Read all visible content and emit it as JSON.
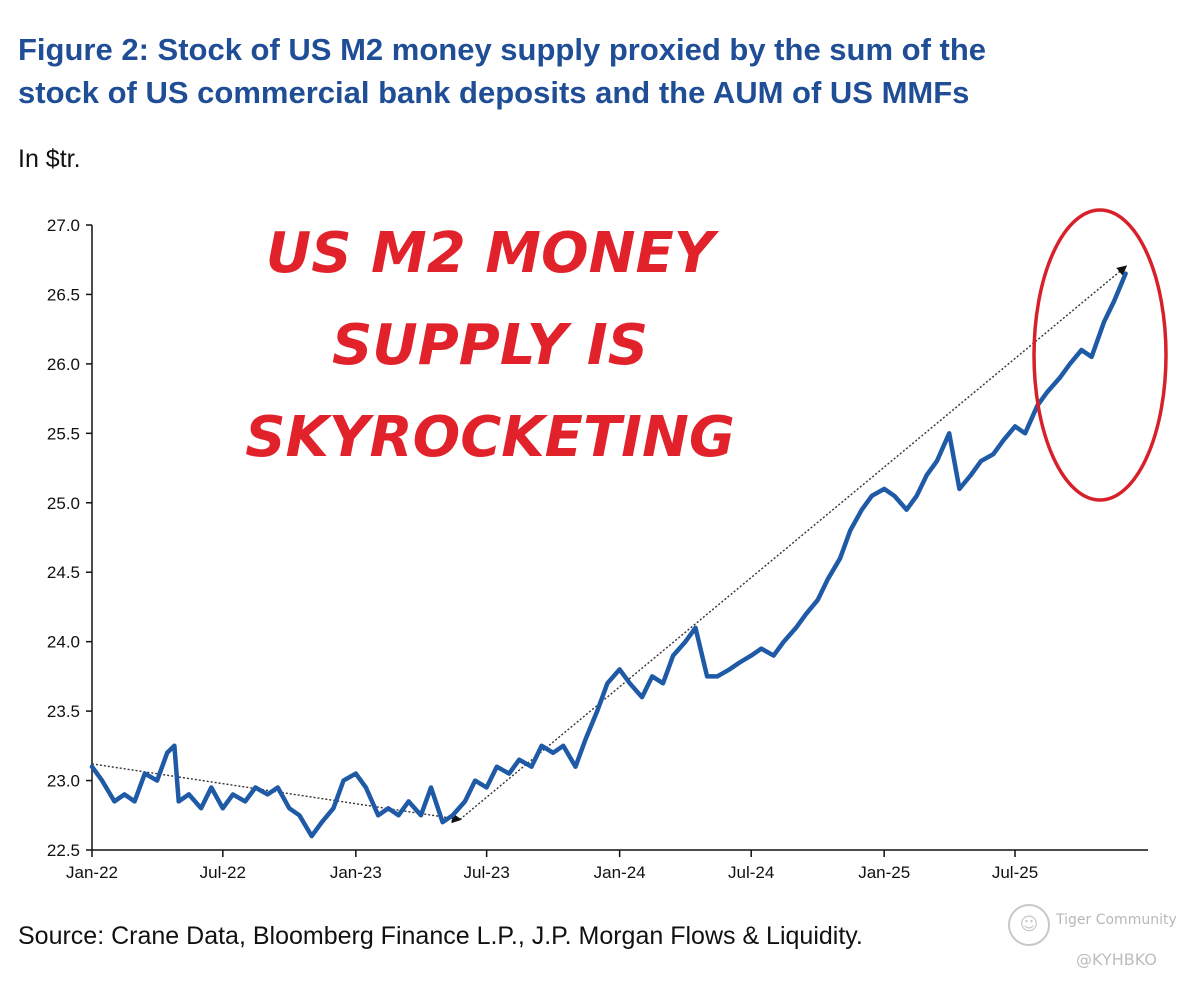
{
  "chart_data": {
    "type": "line",
    "title": "Figure 2: Stock of US M2 money supply proxied by the sum of the stock of US commercial bank deposits and the AUM of US MMFs",
    "subtitle": "In $tr.",
    "xlabel": "",
    "ylabel": "",
    "ylim": [
      22.5,
      27.0
    ],
    "yticks": [
      "22.5",
      "23.0",
      "23.5",
      "24.0",
      "24.5",
      "25.0",
      "25.5",
      "26.0",
      "26.5",
      "27.0"
    ],
    "xticks": [
      "Jan-22",
      "Jul-22",
      "Jan-23",
      "Jul-23",
      "Jan-24",
      "Jul-24",
      "Jan-25",
      "Jul-25"
    ],
    "grid": false,
    "legend": "none",
    "colors": {
      "line": "#1f5aa6",
      "trend": "#333333",
      "annotation": "#e2222b",
      "title": "#1f4e96"
    },
    "series": [
      {
        "values": [
          [
            "2022-01-01",
            23.1
          ],
          [
            "2022-01-15",
            23.0
          ],
          [
            "2022-02-01",
            22.85
          ],
          [
            "2022-02-15",
            22.9
          ],
          [
            "2022-03-01",
            22.85
          ],
          [
            "2022-03-15",
            23.05
          ],
          [
            "2022-04-01",
            23.0
          ],
          [
            "2022-04-15",
            23.2
          ],
          [
            "2022-04-25",
            23.25
          ],
          [
            "2022-05-01",
            22.85
          ],
          [
            "2022-05-15",
            22.9
          ],
          [
            "2022-06-01",
            22.8
          ],
          [
            "2022-06-15",
            22.95
          ],
          [
            "2022-07-01",
            22.8
          ],
          [
            "2022-07-15",
            22.9
          ],
          [
            "2022-08-01",
            22.85
          ],
          [
            "2022-08-15",
            22.95
          ],
          [
            "2022-09-01",
            22.9
          ],
          [
            "2022-09-15",
            22.95
          ],
          [
            "2022-10-01",
            22.8
          ],
          [
            "2022-10-15",
            22.75
          ],
          [
            "2022-11-01",
            22.6
          ],
          [
            "2022-11-15",
            22.7
          ],
          [
            "2022-12-01",
            22.8
          ],
          [
            "2022-12-15",
            23.0
          ],
          [
            "2023-01-01",
            23.05
          ],
          [
            "2023-01-15",
            22.95
          ],
          [
            "2023-02-01",
            22.75
          ],
          [
            "2023-02-15",
            22.8
          ],
          [
            "2023-03-01",
            22.75
          ],
          [
            "2023-03-15",
            22.85
          ],
          [
            "2023-04-01",
            22.75
          ],
          [
            "2023-04-15",
            22.95
          ],
          [
            "2023-05-01",
            22.7
          ],
          [
            "2023-05-15",
            22.75
          ],
          [
            "2023-06-01",
            22.85
          ],
          [
            "2023-06-15",
            23.0
          ],
          [
            "2023-07-01",
            22.95
          ],
          [
            "2023-07-15",
            23.1
          ],
          [
            "2023-08-01",
            23.05
          ],
          [
            "2023-08-15",
            23.15
          ],
          [
            "2023-09-01",
            23.1
          ],
          [
            "2023-09-15",
            23.25
          ],
          [
            "2023-10-01",
            23.2
          ],
          [
            "2023-10-15",
            23.25
          ],
          [
            "2023-11-01",
            23.1
          ],
          [
            "2023-11-15",
            23.3
          ],
          [
            "2023-12-01",
            23.5
          ],
          [
            "2023-12-15",
            23.7
          ],
          [
            "2024-01-01",
            23.8
          ],
          [
            "2024-01-15",
            23.7
          ],
          [
            "2024-02-01",
            23.6
          ],
          [
            "2024-02-15",
            23.75
          ],
          [
            "2024-03-01",
            23.7
          ],
          [
            "2024-03-15",
            23.9
          ],
          [
            "2024-04-01",
            24.0
          ],
          [
            "2024-04-15",
            24.1
          ],
          [
            "2024-05-01",
            23.75
          ],
          [
            "2024-05-15",
            23.75
          ],
          [
            "2024-06-01",
            23.8
          ],
          [
            "2024-06-15",
            23.85
          ],
          [
            "2024-07-01",
            23.9
          ],
          [
            "2024-07-15",
            23.95
          ],
          [
            "2024-08-01",
            23.9
          ],
          [
            "2024-08-15",
            24.0
          ],
          [
            "2024-09-01",
            24.1
          ],
          [
            "2024-09-15",
            24.2
          ],
          [
            "2024-10-01",
            24.3
          ],
          [
            "2024-10-15",
            24.45
          ],
          [
            "2024-11-01",
            24.6
          ],
          [
            "2024-11-15",
            24.8
          ],
          [
            "2024-12-01",
            24.95
          ],
          [
            "2024-12-15",
            25.05
          ],
          [
            "2025-01-01",
            25.1
          ],
          [
            "2025-01-15",
            25.05
          ],
          [
            "2025-02-01",
            24.95
          ],
          [
            "2025-02-15",
            25.05
          ],
          [
            "2025-03-01",
            25.2
          ],
          [
            "2025-03-15",
            25.3
          ],
          [
            "2025-04-01",
            25.5
          ],
          [
            "2025-04-15",
            25.1
          ],
          [
            "2025-05-01",
            25.2
          ],
          [
            "2025-05-15",
            25.3
          ],
          [
            "2025-06-01",
            25.35
          ],
          [
            "2025-06-15",
            25.45
          ],
          [
            "2025-07-01",
            25.55
          ],
          [
            "2025-07-15",
            25.5
          ],
          [
            "2025-08-01",
            25.7
          ],
          [
            "2025-08-15",
            25.8
          ],
          [
            "2025-09-01",
            25.9
          ],
          [
            "2025-09-15",
            26.0
          ],
          [
            "2025-10-01",
            26.1
          ],
          [
            "2025-10-15",
            26.05
          ],
          [
            "2025-11-01",
            26.3
          ],
          [
            "2025-11-15",
            26.45
          ],
          [
            "2025-12-01",
            26.65
          ]
        ]
      }
    ],
    "trend_lines": [
      {
        "from": [
          "2022-01-01",
          23.12
        ],
        "to": [
          "2023-05-25",
          22.72
        ]
      },
      {
        "from": [
          "2023-05-25",
          22.72
        ],
        "to": [
          "2025-12-01",
          26.7
        ]
      }
    ],
    "annotation": "US M2 MONEY SUPPLY IS SKYROCKETING",
    "annotation_lines": [
      "US M2 MONEY",
      "SUPPLY IS",
      "SKYROCKETING"
    ],
    "highlight": "red ellipse around late-2025 data"
  },
  "title_lines": [
    "Figure 2: Stock of US M2 money supply proxied by the sum of the",
    "stock of US commercial bank deposits and the AUM of US MMFs"
  ],
  "source": "Source: Crane Data, Bloomberg Finance L.P., J.P. Morgan Flows & Liquidity.",
  "watermark": {
    "brand": "Tiger Community",
    "handle": "@KYHBKO"
  }
}
